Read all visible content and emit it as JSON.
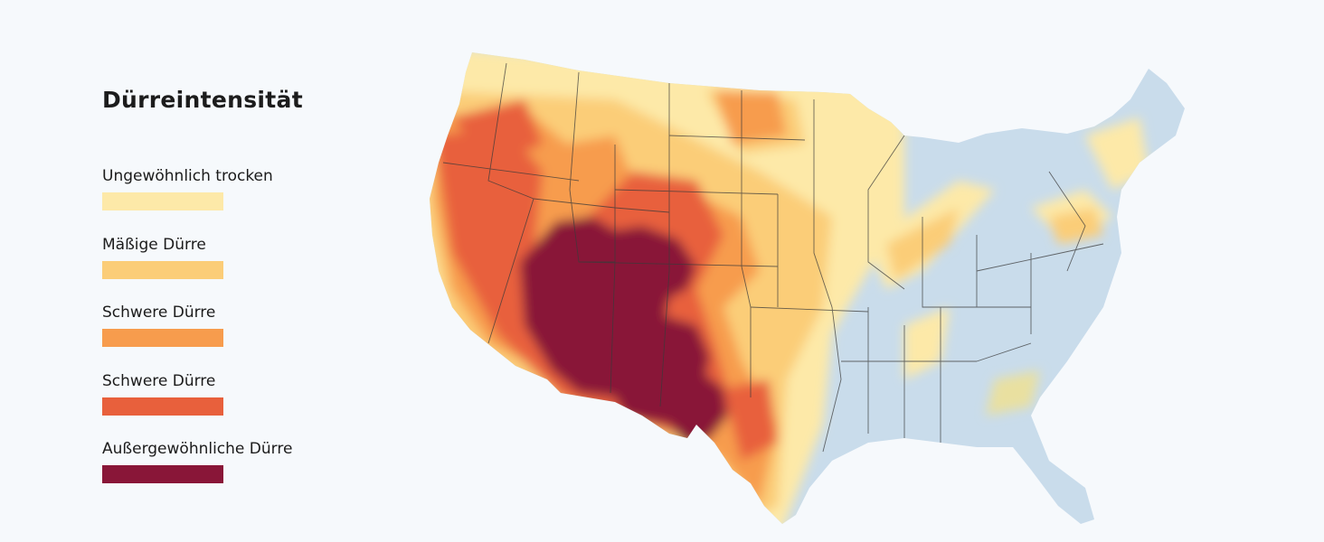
{
  "legend": {
    "title": "Dürreintensität",
    "items": [
      {
        "label": "Ungewöhnlich trocken",
        "color": "#fde9a8"
      },
      {
        "label": "Mäßige Dürre",
        "color": "#fbcd78"
      },
      {
        "label": "Schwere Dürre",
        "color": "#f79c4d"
      },
      {
        "label": "Schwere Dürre",
        "color": "#e8603c"
      },
      {
        "label": "Außergewöhnliche Dürre",
        "color": "#891638"
      }
    ]
  },
  "map": {
    "region": "USA",
    "no_drought_color": "#c9dceb"
  }
}
